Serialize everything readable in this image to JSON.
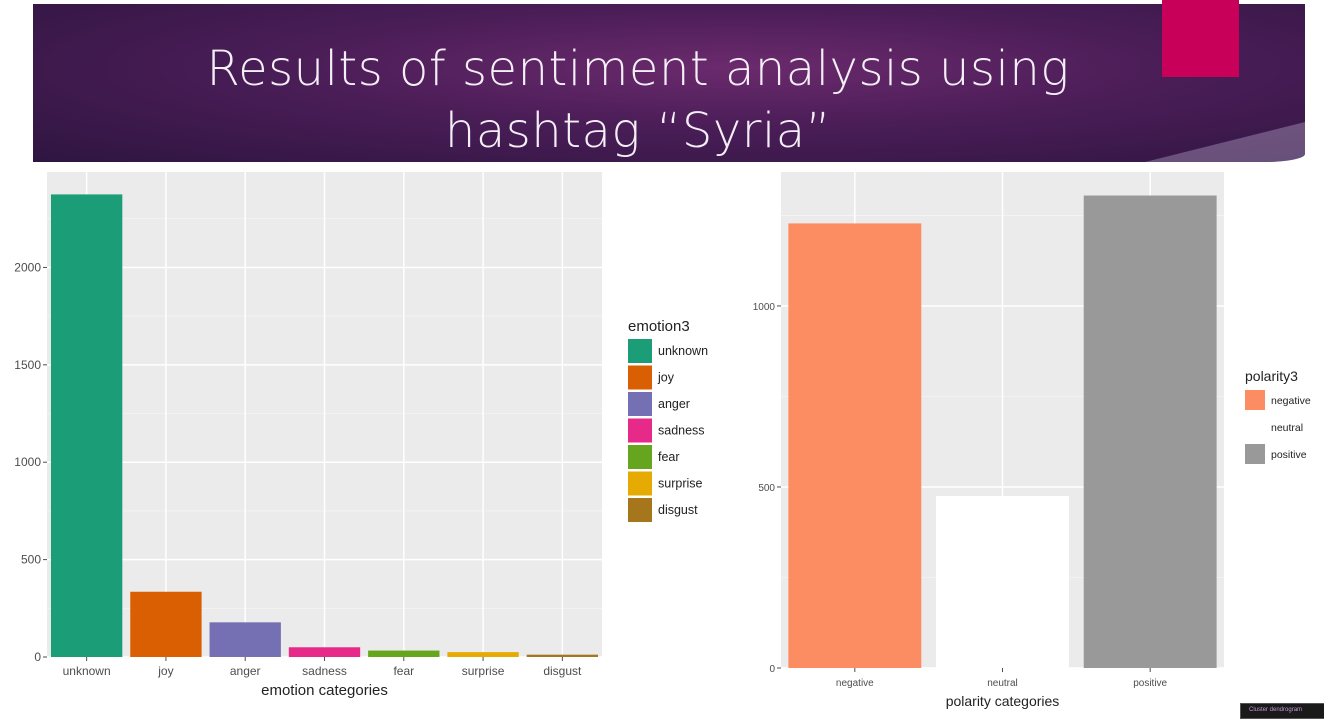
{
  "slide": {
    "title_line1": "Results of sentiment analysis using",
    "title_line2": "hashtag “Syria”",
    "accent_color": "#c8005a",
    "thumbnail_text": "Cluster dendrogram"
  },
  "chart_data": [
    {
      "type": "bar",
      "xlabel": "emotion categories",
      "ylabel": "",
      "categories": [
        "unknown",
        "joy",
        "anger",
        "sadness",
        "fear",
        "surprise",
        "disgust"
      ],
      "values": [
        2375,
        335,
        178,
        50,
        33,
        25,
        12
      ],
      "colors": [
        "#1b9e77",
        "#d95f02",
        "#7570b3",
        "#e7298a",
        "#66a61e",
        "#e6ab02",
        "#a6761d"
      ],
      "yticks": [
        0,
        500,
        1000,
        1500,
        2000
      ],
      "ylim": [
        0,
        2490
      ],
      "legend": {
        "title": "emotion3",
        "position": "right",
        "items": [
          "unknown",
          "joy",
          "anger",
          "sadness",
          "fear",
          "surprise",
          "disgust"
        ]
      },
      "grid": true
    },
    {
      "type": "bar",
      "xlabel": "polarity categories",
      "ylabel": "",
      "categories": [
        "negative",
        "neutral",
        "positive"
      ],
      "values": [
        1228,
        475,
        1305
      ],
      "colors": [
        "#fc8d62",
        "#ffffff",
        "#999999"
      ],
      "yticks": [
        0,
        500,
        1000
      ],
      "ylim": [
        0,
        1370
      ],
      "legend": {
        "title": "polarity3",
        "position": "right",
        "items": [
          "negative",
          "neutral",
          "positive"
        ]
      },
      "grid": true
    }
  ]
}
